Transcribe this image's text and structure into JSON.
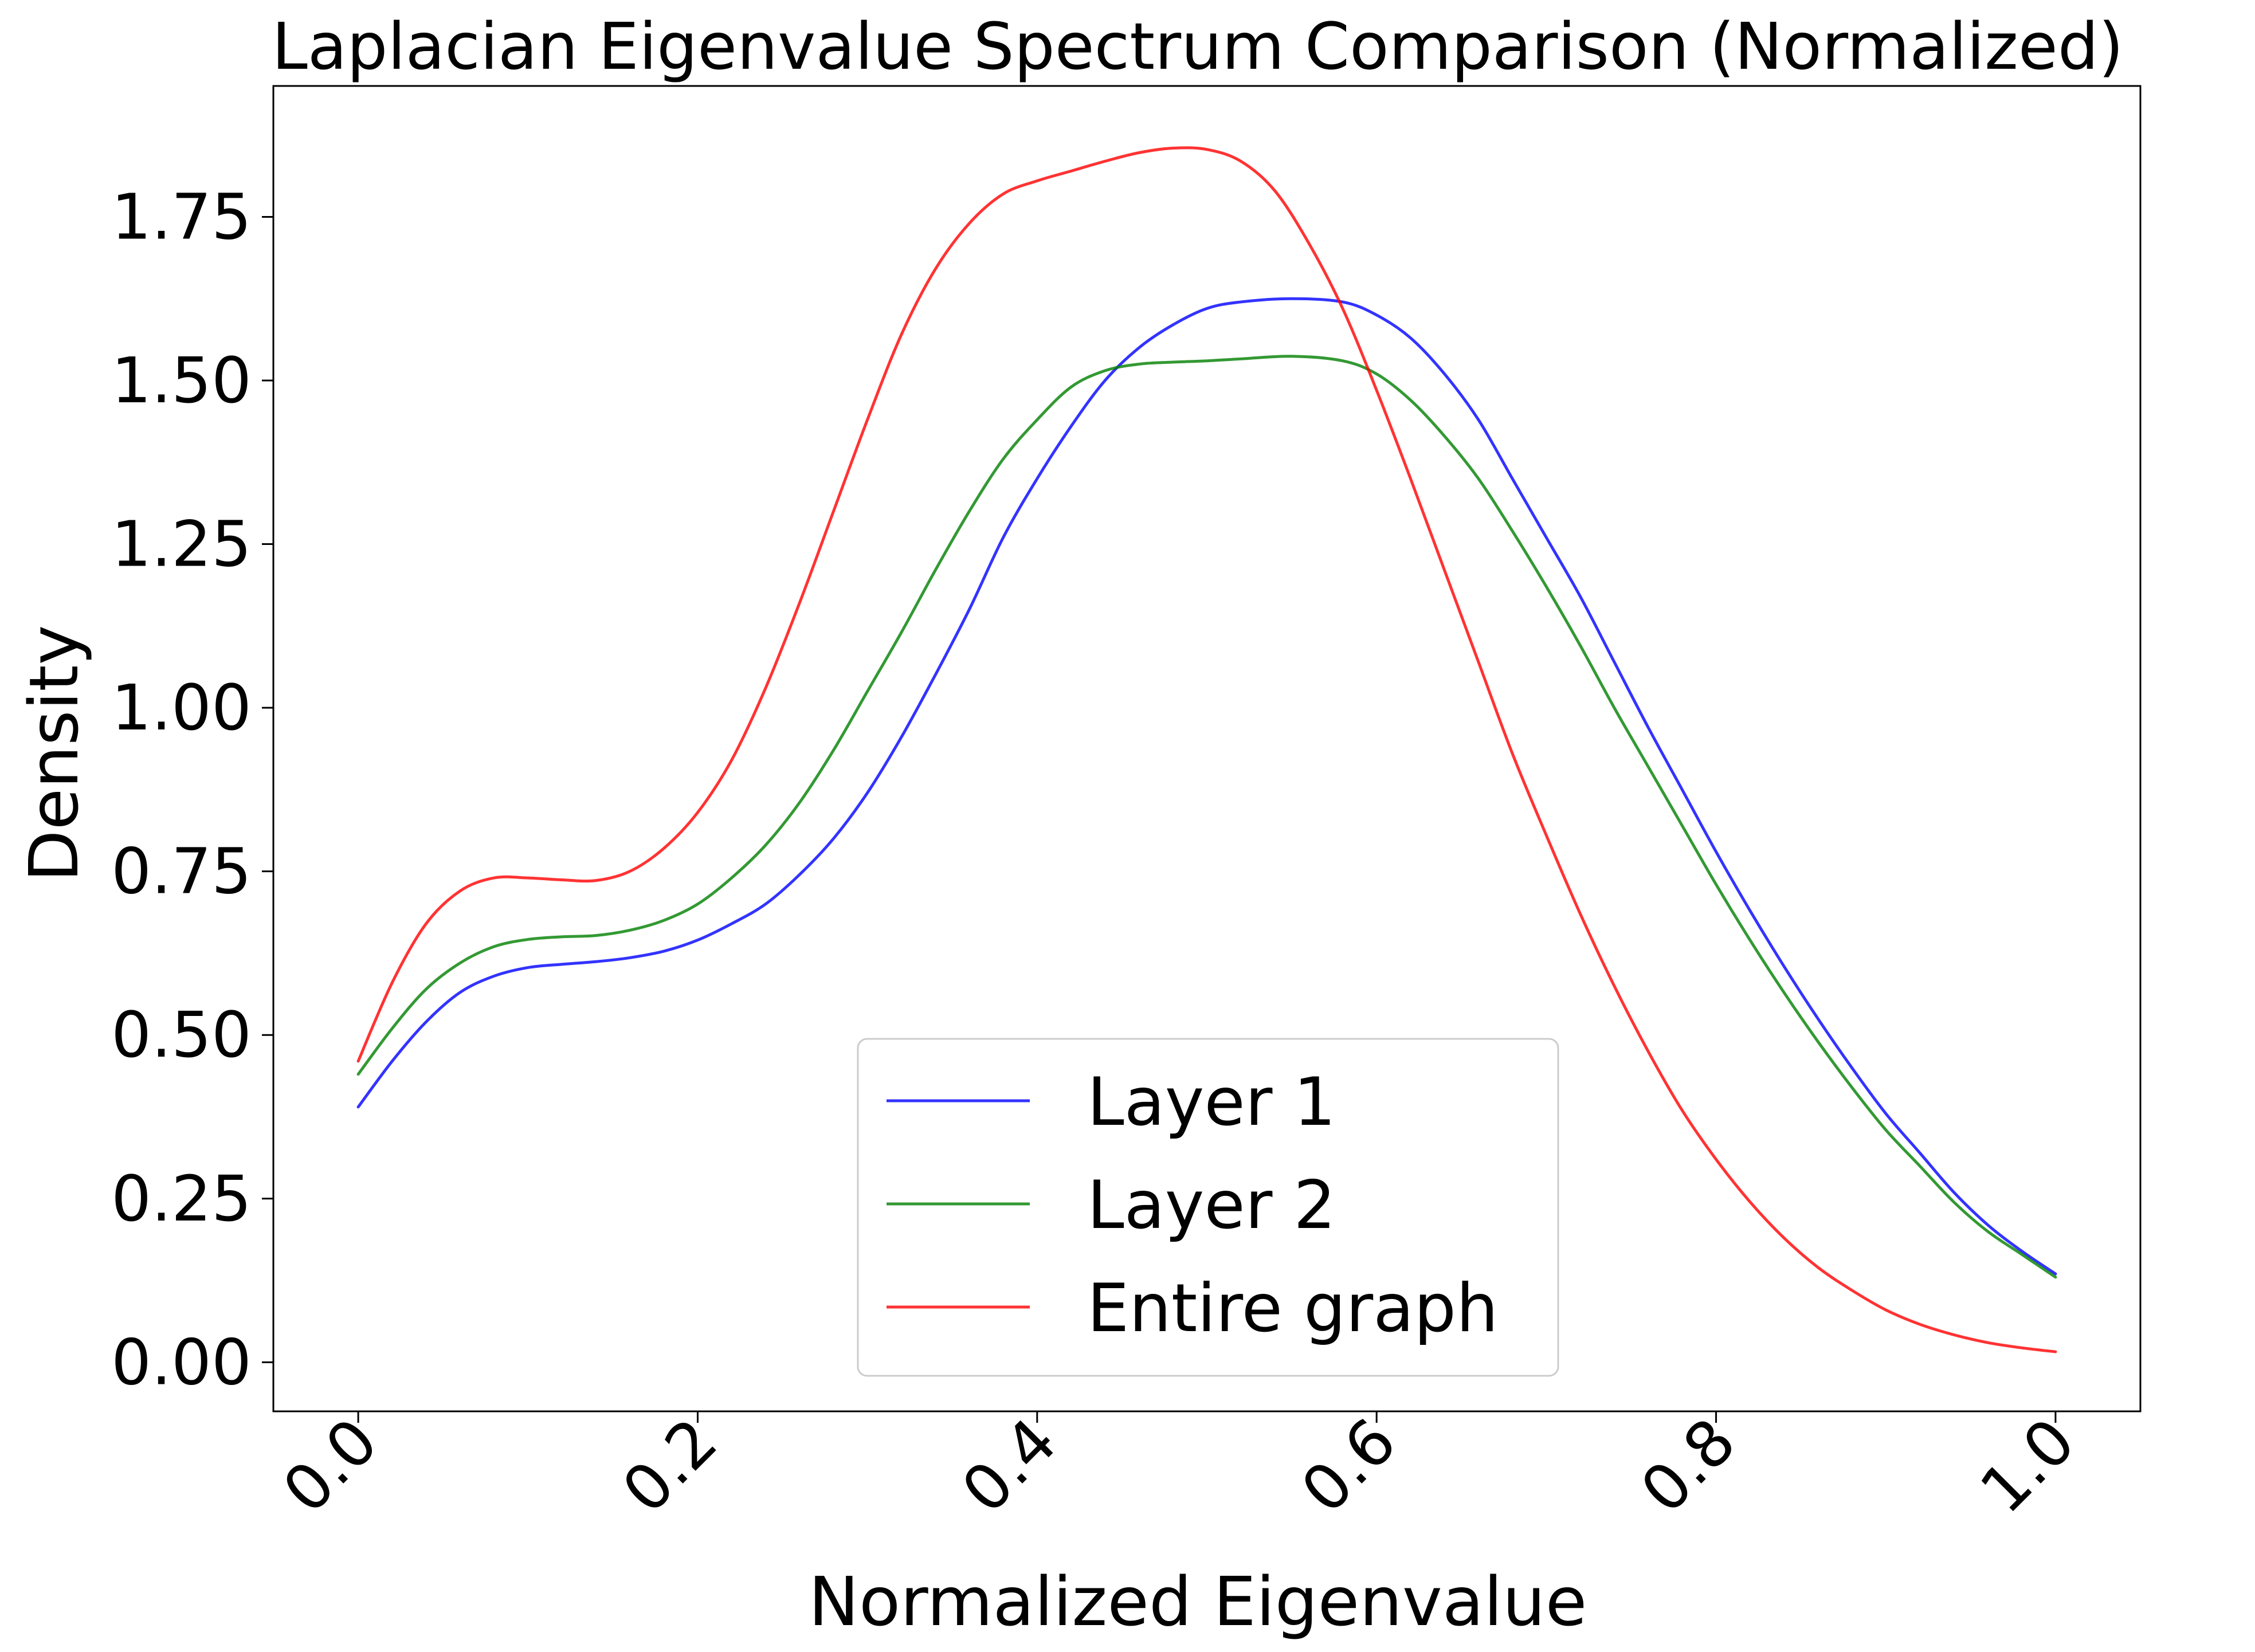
{
  "chart_data": {
    "type": "line",
    "title": "Laplacian Eigenvalue Spectrum Comparison (Normalized)",
    "xlabel": "Normalized Eigenvalue",
    "ylabel": "Density",
    "xlim": [
      -0.05,
      1.05
    ],
    "ylim": [
      -0.075,
      1.95
    ],
    "xticks": [
      0.0,
      0.2,
      0.4,
      0.6,
      0.8,
      1.0
    ],
    "xtick_labels": [
      "0.0",
      "0.2",
      "0.4",
      "0.6",
      "0.8",
      "1.0"
    ],
    "xtick_rotation": 45,
    "yticks": [
      0.0,
      0.25,
      0.5,
      0.75,
      1.0,
      1.25,
      1.5,
      1.75
    ],
    "ytick_labels": [
      "0.00",
      "0.25",
      "0.50",
      "0.75",
      "1.00",
      "1.25",
      "1.50",
      "1.75"
    ],
    "grid": false,
    "legend": "lower-center",
    "series": [
      {
        "name": "Layer 1",
        "color": "#0000ff",
        "x": [
          0.0,
          0.02,
          0.04,
          0.06,
          0.08,
          0.1,
          0.12,
          0.14,
          0.16,
          0.18,
          0.2,
          0.22,
          0.24,
          0.26,
          0.28,
          0.3,
          0.32,
          0.34,
          0.36,
          0.38,
          0.4,
          0.42,
          0.44,
          0.46,
          0.48,
          0.5,
          0.52,
          0.55,
          0.58,
          0.6,
          0.62,
          0.64,
          0.66,
          0.68,
          0.7,
          0.72,
          0.74,
          0.76,
          0.78,
          0.8,
          0.82,
          0.84,
          0.86,
          0.88,
          0.9,
          0.92,
          0.94,
          0.96,
          0.98,
          1.0
        ],
        "y": [
          0.39,
          0.46,
          0.52,
          0.565,
          0.59,
          0.603,
          0.608,
          0.612,
          0.618,
          0.628,
          0.645,
          0.67,
          0.7,
          0.745,
          0.8,
          0.87,
          0.955,
          1.05,
          1.15,
          1.26,
          1.35,
          1.43,
          1.5,
          1.55,
          1.585,
          1.61,
          1.62,
          1.625,
          1.62,
          1.6,
          1.565,
          1.51,
          1.44,
          1.35,
          1.26,
          1.17,
          1.07,
          0.97,
          0.875,
          0.78,
          0.69,
          0.605,
          0.525,
          0.45,
          0.38,
          0.32,
          0.26,
          0.21,
          0.17,
          0.135
        ]
      },
      {
        "name": "Layer 2",
        "color": "#008000",
        "x": [
          0.0,
          0.02,
          0.04,
          0.06,
          0.08,
          0.1,
          0.12,
          0.14,
          0.16,
          0.18,
          0.2,
          0.22,
          0.24,
          0.26,
          0.28,
          0.3,
          0.32,
          0.34,
          0.36,
          0.38,
          0.4,
          0.42,
          0.44,
          0.46,
          0.48,
          0.5,
          0.52,
          0.55,
          0.58,
          0.6,
          0.62,
          0.64,
          0.66,
          0.68,
          0.7,
          0.72,
          0.74,
          0.76,
          0.78,
          0.8,
          0.82,
          0.84,
          0.86,
          0.88,
          0.9,
          0.92,
          0.94,
          0.96,
          0.98,
          1.0
        ],
        "y": [
          0.44,
          0.51,
          0.57,
          0.61,
          0.635,
          0.646,
          0.65,
          0.652,
          0.66,
          0.675,
          0.7,
          0.74,
          0.79,
          0.855,
          0.935,
          1.025,
          1.115,
          1.21,
          1.3,
          1.38,
          1.44,
          1.49,
          1.515,
          1.525,
          1.528,
          1.53,
          1.533,
          1.537,
          1.53,
          1.51,
          1.47,
          1.415,
          1.35,
          1.27,
          1.185,
          1.095,
          1.0,
          0.91,
          0.82,
          0.73,
          0.645,
          0.565,
          0.49,
          0.42,
          0.355,
          0.3,
          0.245,
          0.2,
          0.165,
          0.13
        ]
      },
      {
        "name": "Entire graph",
        "color": "#ff0000",
        "x": [
          0.0,
          0.02,
          0.04,
          0.06,
          0.08,
          0.1,
          0.12,
          0.14,
          0.16,
          0.18,
          0.2,
          0.22,
          0.24,
          0.26,
          0.28,
          0.3,
          0.32,
          0.34,
          0.36,
          0.38,
          0.4,
          0.42,
          0.44,
          0.46,
          0.48,
          0.5,
          0.52,
          0.54,
          0.56,
          0.58,
          0.6,
          0.62,
          0.64,
          0.66,
          0.68,
          0.7,
          0.72,
          0.74,
          0.76,
          0.78,
          0.8,
          0.82,
          0.84,
          0.86,
          0.88,
          0.9,
          0.92,
          0.94,
          0.96,
          0.98,
          1.0
        ],
        "y": [
          0.46,
          0.58,
          0.67,
          0.72,
          0.74,
          0.74,
          0.737,
          0.736,
          0.75,
          0.785,
          0.84,
          0.92,
          1.03,
          1.16,
          1.3,
          1.44,
          1.57,
          1.67,
          1.74,
          1.785,
          1.805,
          1.82,
          1.835,
          1.848,
          1.855,
          1.853,
          1.835,
          1.79,
          1.71,
          1.61,
          1.485,
          1.35,
          1.21,
          1.07,
          0.93,
          0.805,
          0.685,
          0.575,
          0.475,
          0.385,
          0.31,
          0.245,
          0.19,
          0.145,
          0.11,
          0.08,
          0.058,
          0.042,
          0.03,
          0.022,
          0.016
        ]
      }
    ]
  }
}
